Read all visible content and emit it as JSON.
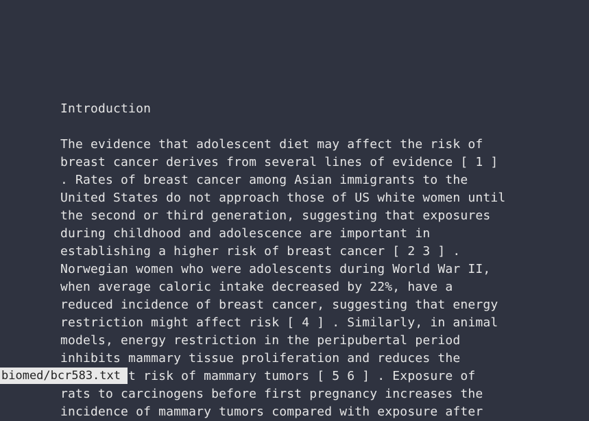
{
  "document": {
    "heading": "Introduction",
    "lines": [
      "The evidence that adolescent diet may affect the risk of",
      "breast cancer derives from several lines of evidence [ 1 ]",
      ". Rates of breast cancer among Asian immigrants to the",
      "United States do not approach those of US white women until",
      "the second or third generation, suggesting that exposures",
      "during childhood and adolescence are important in",
      "establishing a higher risk of breast cancer [ 2 3 ] .",
      "Norwegian women who were adolescents during World War II,",
      "when average caloric intake decreased by 22%, have a",
      "reduced incidence of breast cancer, suggesting that energy",
      "restriction might affect risk [ 4 ] . Similarly, in animal",
      "models, energy restriction in the peripubertal period",
      "inhibits mammary tissue proliferation and reduces the",
      "subsequent risk of mammary tumors [ 5 6 ] . Exposure of",
      "rats to carcinogens before first pregnancy increases the",
      "incidence of mammary tumors compared with exposure after"
    ]
  },
  "status_bar": {
    "filename": "biomed/bcr583.txt"
  }
}
